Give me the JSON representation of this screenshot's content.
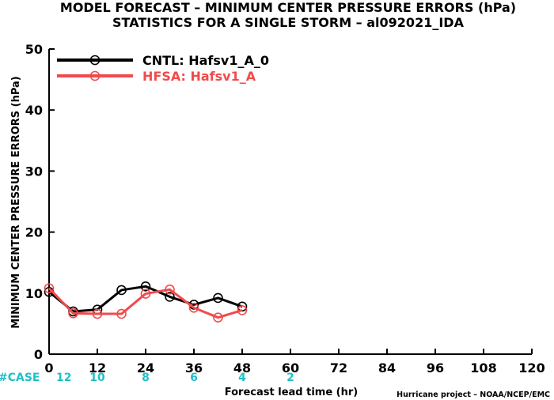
{
  "chart_data": {
    "type": "line",
    "title": "MODEL FORECAST – MINIMUM CENTER PRESSURE ERRORS (hPa)",
    "subtitle": "STATISTICS FOR A SINGLE STORM – al092021_IDA",
    "xlabel": "Forecast lead time (hr)",
    "ylabel": "MINIMUM CENTER PRESSURE ERRORS (hPa)",
    "xlim": [
      0,
      120
    ],
    "ylim": [
      0,
      50
    ],
    "x_ticks": [
      0,
      12,
      24,
      36,
      48,
      60,
      72,
      84,
      96,
      108,
      120
    ],
    "y_ticks": [
      0,
      10,
      20,
      30,
      40,
      50
    ],
    "grid": false,
    "legend_position": "top-left",
    "series": [
      {
        "name": "CNTL: Hafsv1_A_0",
        "color": "#000000",
        "x": [
          0,
          6,
          12,
          18,
          24,
          30,
          36,
          42,
          48
        ],
        "values": [
          10.2,
          7.0,
          7.3,
          10.5,
          11.1,
          9.4,
          8.1,
          9.2,
          7.8
        ]
      },
      {
        "name": "HFSA: Hafsv1_A",
        "color": "#f04b4b",
        "x": [
          0,
          6,
          12,
          18,
          24,
          30,
          36,
          42,
          48
        ],
        "values": [
          10.8,
          6.7,
          6.6,
          6.6,
          9.9,
          10.6,
          7.6,
          6.0,
          7.2
        ]
      }
    ],
    "case_counts": {
      "label": "#CASE",
      "x": [
        0,
        12,
        24,
        36,
        48,
        60
      ],
      "values": [
        "12",
        "10",
        "8",
        "6",
        "4",
        "2"
      ],
      "color": "#1fc0c8"
    }
  },
  "credit": "Hurricane project – NOAA/NCEP/EMC"
}
